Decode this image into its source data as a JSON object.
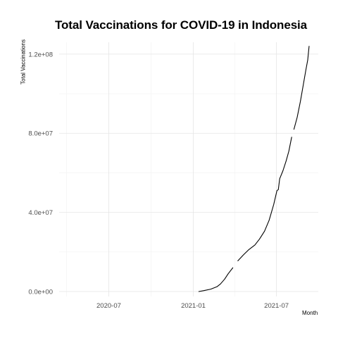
{
  "chart_data": {
    "type": "line",
    "title": "Total Vaccinations for COVID-19 in Indonesia",
    "xlabel": "Month",
    "ylabel": "Total Vaccinations",
    "x_scale": "date",
    "xlim": [
      "2020-03-15",
      "2021-09-30"
    ],
    "ylim": [
      -2500000,
      126000000
    ],
    "x_ticks": [
      {
        "value": "2020-07-01",
        "label": "2020-07"
      },
      {
        "value": "2021-01-01",
        "label": "2021-01"
      },
      {
        "value": "2021-07-01",
        "label": "2021-07"
      }
    ],
    "y_ticks": [
      {
        "value": 0,
        "label": "0.0e+00"
      },
      {
        "value": 40000000,
        "label": "4.0e+07"
      },
      {
        "value": 80000000,
        "label": "8.0e+07"
      },
      {
        "value": 120000000,
        "label": "1.2e+08"
      }
    ],
    "grid": true,
    "series": [
      {
        "color": "#000000",
        "segments": [
          [
            {
              "x": "2021-01-13",
              "y": 0
            },
            {
              "x": "2021-01-25",
              "y": 500000
            },
            {
              "x": "2021-02-08",
              "y": 1200000
            },
            {
              "x": "2021-02-22",
              "y": 2500000
            },
            {
              "x": "2021-03-01",
              "y": 3800000
            },
            {
              "x": "2021-03-10",
              "y": 6200000
            },
            {
              "x": "2021-03-18",
              "y": 9000000
            },
            {
              "x": "2021-03-28",
              "y": 12000000
            }
          ],
          [
            {
              "x": "2021-04-08",
              "y": 15500000
            },
            {
              "x": "2021-04-20",
              "y": 18500000
            },
            {
              "x": "2021-05-01",
              "y": 21000000
            },
            {
              "x": "2021-05-15",
              "y": 23500000
            },
            {
              "x": "2021-05-25",
              "y": 26500000
            },
            {
              "x": "2021-06-05",
              "y": 30500000
            },
            {
              "x": "2021-06-15",
              "y": 36000000
            },
            {
              "x": "2021-06-25",
              "y": 44000000
            },
            {
              "x": "2021-07-02",
              "y": 51000000
            },
            {
              "x": "2021-07-05",
              "y": 51500000
            },
            {
              "x": "2021-07-08",
              "y": 57000000
            },
            {
              "x": "2021-07-15",
              "y": 61000000
            },
            {
              "x": "2021-07-22",
              "y": 66000000
            },
            {
              "x": "2021-07-28",
              "y": 71000000
            },
            {
              "x": "2021-08-03",
              "y": 78000000
            }
          ],
          [
            {
              "x": "2021-08-08",
              "y": 82000000
            },
            {
              "x": "2021-08-15",
              "y": 88000000
            },
            {
              "x": "2021-08-22",
              "y": 96000000
            },
            {
              "x": "2021-08-28",
              "y": 104000000
            },
            {
              "x": "2021-09-03",
              "y": 112000000
            },
            {
              "x": "2021-09-07",
              "y": 117000000
            },
            {
              "x": "2021-09-10",
              "y": 124000000
            }
          ]
        ]
      }
    ]
  }
}
